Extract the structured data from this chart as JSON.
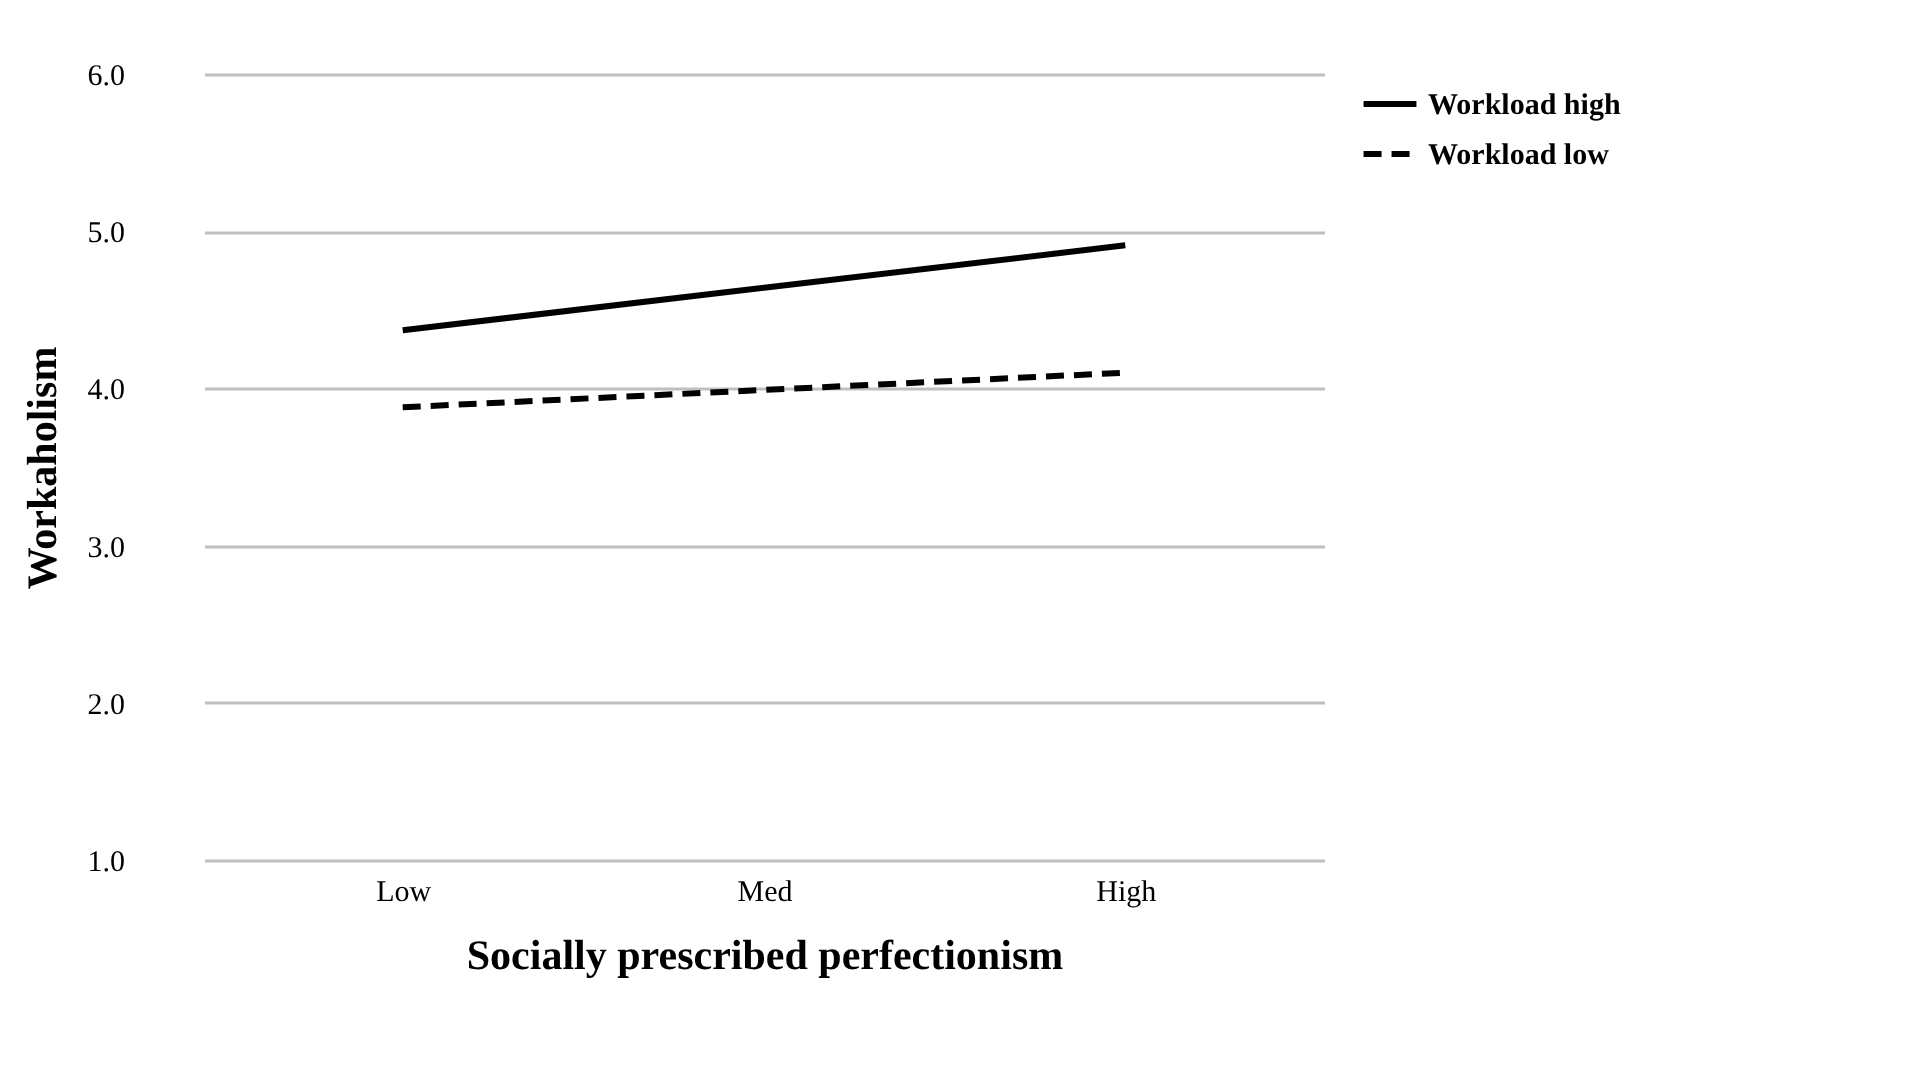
{
  "chart_data": {
    "type": "line",
    "xlabel": "Socially prescribed perfectionism",
    "ylabel": "Workaholism",
    "categories": [
      "Low",
      "Med",
      "High"
    ],
    "series": [
      {
        "name": "Workload high",
        "color": "#000000",
        "line_style": "solid",
        "values": [
          4.37,
          4.64,
          4.91
        ]
      },
      {
        "name": "Workload low",
        "color": "#000000",
        "line_style": "dashed",
        "values": [
          3.88,
          3.99,
          4.1
        ]
      }
    ],
    "ylim": [
      1,
      6
    ],
    "yticks": [
      {
        "value": 1,
        "label": "1.0"
      },
      {
        "value": 2,
        "label": "2.0"
      },
      {
        "value": 3,
        "label": "3.0"
      },
      {
        "value": 4,
        "label": "4.0"
      },
      {
        "value": 5,
        "label": "5.0"
      },
      {
        "value": 6,
        "label": "6.0"
      }
    ],
    "grid": "y",
    "legend": "right",
    "marker": "none"
  }
}
